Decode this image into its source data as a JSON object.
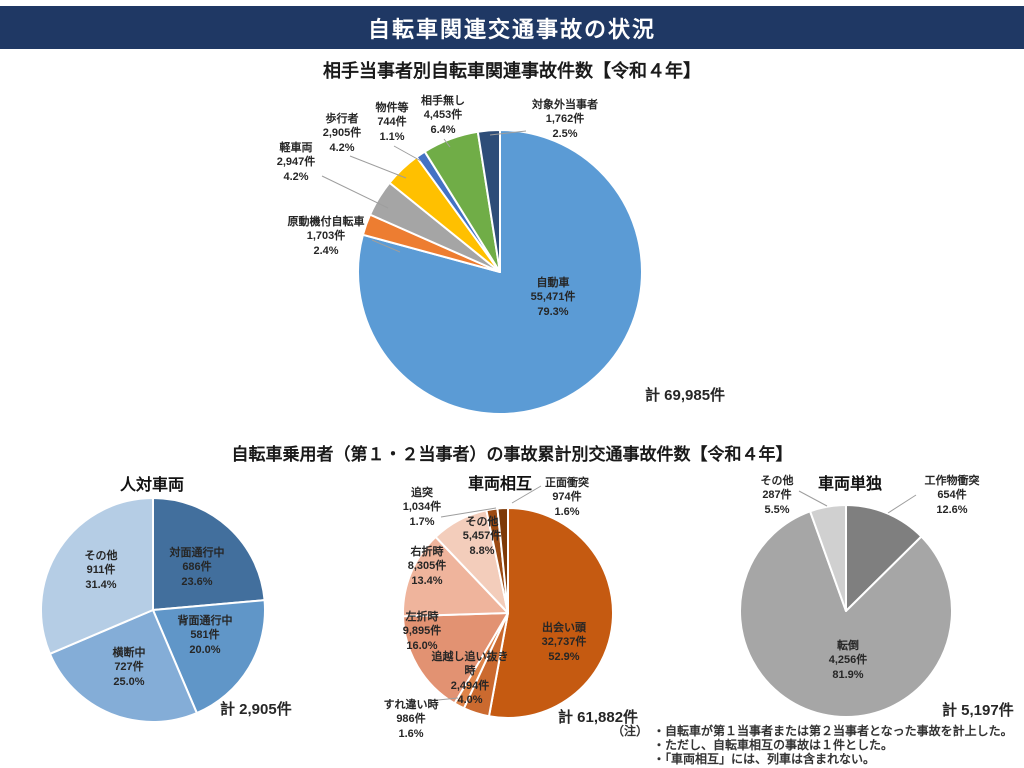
{
  "header": {
    "title": "自転車関連交通事故の状況",
    "bar_color": "#1F3864"
  },
  "section2_title": "自転車乗用者（第１・２当事者）の事故累計別交通事故件数【令和４年】",
  "notes": {
    "prefix": "（注）",
    "items": [
      "・自転車が第１当事者または第２当事者となった事故を計上した。",
      "・ただし、自転車相互の事故は１件とした。",
      "・「車両相互」には、列車は含まれない。"
    ]
  },
  "chart_data": [
    {
      "type": "pie",
      "title": "相手当事者別自転車関連事故件数【令和４年】",
      "total_label": "計 69,985件",
      "total_value": 69985,
      "start_angle_deg": 0,
      "direction": "clockwise",
      "legend": "none",
      "slices": [
        {
          "label": "自動車",
          "count": "55,471件",
          "pct": "79.3%",
          "value": 55471,
          "pct_num": 79.3,
          "color": "#5B9BD5"
        },
        {
          "label": "原動機付自転車",
          "count": "1,703件",
          "pct": "2.4%",
          "value": 1703,
          "pct_num": 2.4,
          "color": "#ED7D31"
        },
        {
          "label": "軽車両",
          "count": "2,947件",
          "pct": "4.2%",
          "value": 2947,
          "pct_num": 4.2,
          "color": "#A5A5A5"
        },
        {
          "label": "歩行者",
          "count": "2,905件",
          "pct": "4.2%",
          "value": 2905,
          "pct_num": 4.2,
          "color": "#FFC000"
        },
        {
          "label": "物件等",
          "count": "744件",
          "pct": "1.1%",
          "value": 744,
          "pct_num": 1.1,
          "color": "#4472C4"
        },
        {
          "label": "相手無し",
          "count": "4,453件",
          "pct": "6.4%",
          "value": 4453,
          "pct_num": 6.4,
          "color": "#70AD47"
        },
        {
          "label": "対象外当事者",
          "count": "1,762件",
          "pct": "2.5%",
          "value": 1762,
          "pct_num": 2.5,
          "color": "#2E4D78"
        }
      ]
    },
    {
      "type": "pie",
      "title": "人対車両",
      "total_label": "計 2,905件",
      "total_value": 2905,
      "start_angle_deg": 0,
      "direction": "clockwise",
      "legend": "none",
      "slices": [
        {
          "label": "対面通行中",
          "count": "686件",
          "pct": "23.6%",
          "value": 686,
          "pct_num": 23.6,
          "color": "#426F9D"
        },
        {
          "label": "背面通行中",
          "count": "581件",
          "pct": "20.0%",
          "value": 581,
          "pct_num": 20.0,
          "color": "#6096C8"
        },
        {
          "label": "横断中",
          "count": "727件",
          "pct": "25.0%",
          "value": 727,
          "pct_num": 25.0,
          "color": "#84ADD7"
        },
        {
          "label": "その他",
          "count": "911件",
          "pct": "31.4%",
          "value": 911,
          "pct_num": 31.4,
          "color": "#B5CDE5"
        }
      ]
    },
    {
      "type": "pie",
      "title": "車両相互",
      "total_label": "計 61,882件",
      "total_value": 61882,
      "start_angle_deg": 0,
      "direction": "clockwise",
      "legend": "none",
      "slices": [
        {
          "label": "出会い頭",
          "count": "32,737件",
          "pct": "52.9%",
          "value": 32737,
          "pct_num": 52.9,
          "color": "#C55A11"
        },
        {
          "label": "追越し追い抜き時",
          "count": "2,494件",
          "pct": "4.0%",
          "value": 2494,
          "pct_num": 4.0,
          "color": "#CB6A2F"
        },
        {
          "label": "すれ違い時",
          "count": "986件",
          "pct": "1.6%",
          "value": 986,
          "pct_num": 1.6,
          "color": "#DE8348"
        },
        {
          "label": "左折時",
          "count": "9,895件",
          "pct": "16.0%",
          "value": 9895,
          "pct_num": 16.0,
          "color": "#E29272"
        },
        {
          "label": "右折時",
          "count": "8,305件",
          "pct": "13.4%",
          "value": 8305,
          "pct_num": 13.4,
          "color": "#EFB49C"
        },
        {
          "label": "その他",
          "count": "5,457件",
          "pct": "8.8%",
          "value": 5457,
          "pct_num": 8.8,
          "color": "#F3CDBB"
        },
        {
          "label": "追突",
          "count": "1,034件",
          "pct": "1.7%",
          "value": 1034,
          "pct_num": 1.7,
          "color": "#9C4A12"
        },
        {
          "label": "正面衝突",
          "count": "974件",
          "pct": "1.6%",
          "value": 974,
          "pct_num": 1.6,
          "color": "#7E3A08"
        }
      ]
    },
    {
      "type": "pie",
      "title": "車両単独",
      "total_label": "計 5,197件",
      "total_value": 5197,
      "start_angle_deg": 0,
      "direction": "clockwise",
      "legend": "none",
      "slices": [
        {
          "label": "工作物衝突",
          "count": "654件",
          "pct": "12.6%",
          "value": 654,
          "pct_num": 12.6,
          "color": "#7F7F7F"
        },
        {
          "label": "転倒",
          "count": "4,256件",
          "pct": "81.9%",
          "value": 4256,
          "pct_num": 81.9,
          "color": "#A6A6A6"
        },
        {
          "label": "その他",
          "count": "287件",
          "pct": "5.5%",
          "value": 287,
          "pct_num": 5.5,
          "color": "#D0D0D0"
        }
      ]
    }
  ]
}
